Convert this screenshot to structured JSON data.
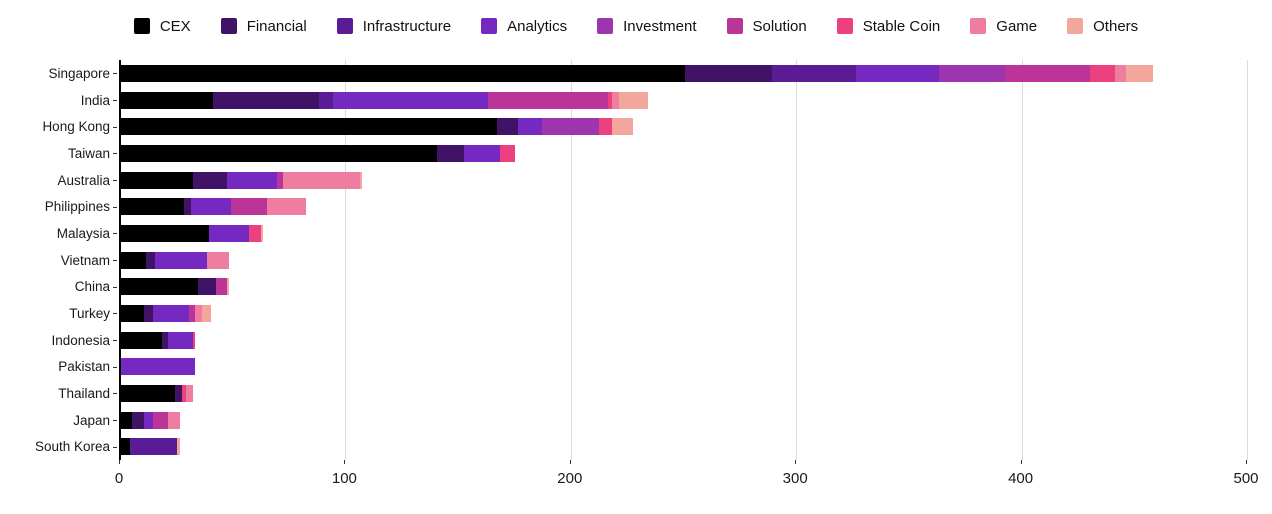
{
  "chart_data": {
    "type": "bar",
    "orientation": "horizontal",
    "stacked": true,
    "title": "",
    "xlabel": "",
    "ylabel": "",
    "xlim": [
      0,
      500
    ],
    "xticks": [
      0,
      100,
      200,
      300,
      400,
      500
    ],
    "grid": "vertical",
    "legend_position": "top",
    "categories": [
      "Singapore",
      "India",
      "Hong Kong",
      "Taiwan",
      "Australia",
      "Philippines",
      "Malaysia",
      "Vietnam",
      "China",
      "Turkey",
      "Indonesia",
      "Pakistan",
      "Thailand",
      "Japan",
      "South Korea"
    ],
    "series": [
      {
        "name": "CEX",
        "color": "#000000",
        "values": [
          250,
          41,
          167,
          140,
          32,
          28,
          39,
          11,
          34,
          10,
          18,
          0,
          24,
          5,
          4
        ]
      },
      {
        "name": "Financial",
        "color": "#411367",
        "values": [
          39,
          47,
          9,
          12,
          15,
          3,
          0,
          4,
          8,
          4,
          3,
          0,
          3,
          5,
          0
        ]
      },
      {
        "name": "Infrastructure",
        "color": "#5a1c95",
        "values": [
          37,
          6,
          0,
          0,
          0,
          0,
          0,
          0,
          0,
          0,
          0,
          0,
          0,
          0,
          21
        ]
      },
      {
        "name": "Analytics",
        "color": "#7529c1",
        "values": [
          37,
          69,
          11,
          16,
          22,
          18,
          18,
          23,
          0,
          16,
          11,
          33,
          0,
          4,
          0
        ]
      },
      {
        "name": "Investment",
        "color": "#9d35ae",
        "values": [
          29,
          0,
          25,
          0,
          0,
          0,
          0,
          0,
          0,
          0,
          0,
          0,
          0,
          0,
          0
        ]
      },
      {
        "name": "Solution",
        "color": "#ba3597",
        "values": [
          38,
          53,
          0,
          0,
          3,
          16,
          0,
          0,
          5,
          3,
          0,
          0,
          0,
          7,
          0
        ]
      },
      {
        "name": "Stable Coin",
        "color": "#ec407f",
        "values": [
          11,
          2,
          6,
          7,
          0,
          0,
          5,
          0,
          0,
          0,
          1,
          0,
          2,
          0,
          0
        ]
      },
      {
        "name": "Game",
        "color": "#ef7da0",
        "values": [
          5,
          3,
          0,
          0,
          34,
          17,
          0,
          10,
          0,
          3,
          0,
          0,
          3,
          5,
          0
        ]
      },
      {
        "name": "Others",
        "color": "#f3a79c",
        "values": [
          12,
          13,
          9,
          0,
          1,
          0,
          1,
          0,
          1,
          4,
          0,
          0,
          0,
          0,
          1
        ]
      }
    ],
    "totals": [
      458,
      234,
      227,
      175,
      107,
      82,
      63,
      48,
      48,
      40,
      33,
      33,
      32,
      26,
      26
    ]
  }
}
